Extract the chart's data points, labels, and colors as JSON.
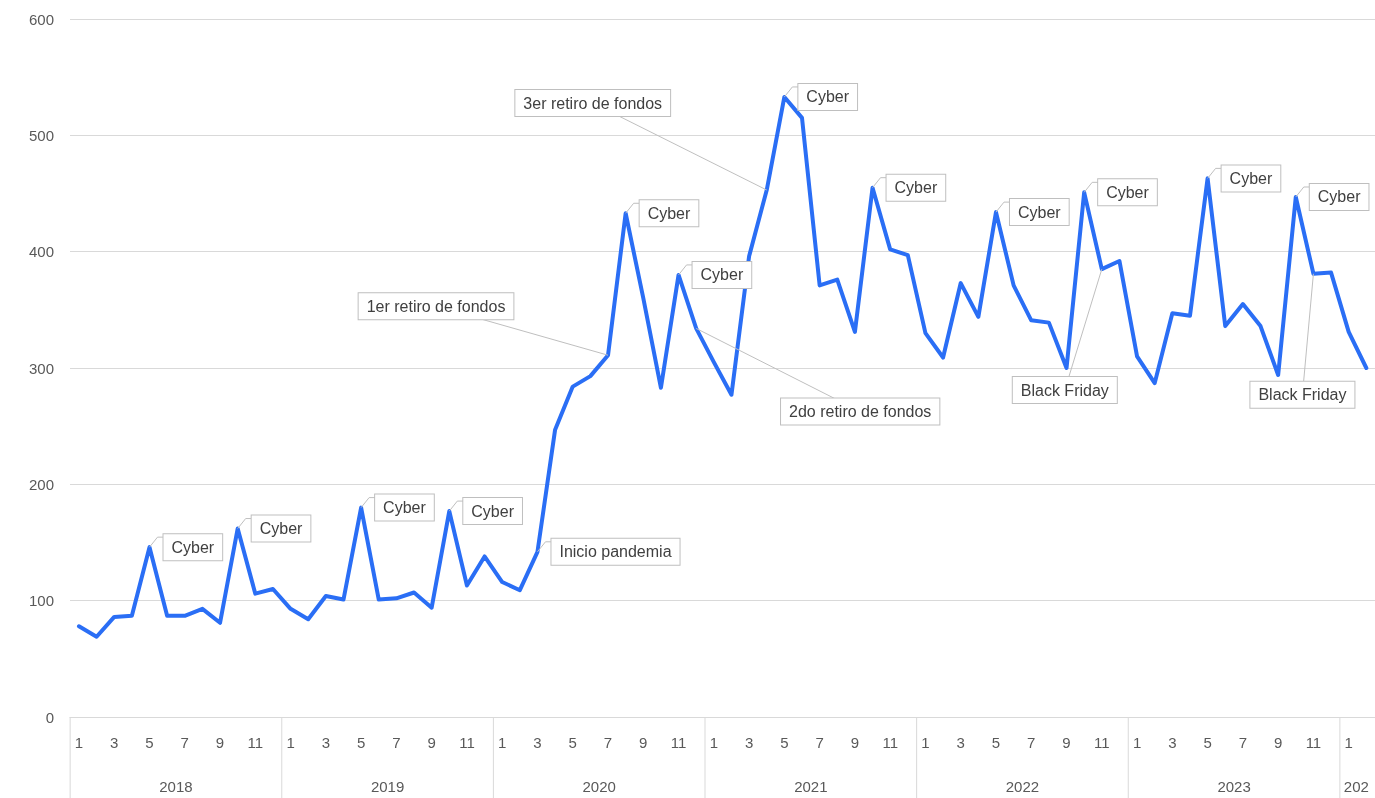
{
  "chart_data": {
    "type": "line",
    "x": [
      "2018-01",
      "2018-02",
      "2018-03",
      "2018-04",
      "2018-05",
      "2018-06",
      "2018-07",
      "2018-08",
      "2018-09",
      "2018-10",
      "2018-11",
      "2018-12",
      "2019-01",
      "2019-02",
      "2019-03",
      "2019-04",
      "2019-05",
      "2019-06",
      "2019-07",
      "2019-08",
      "2019-09",
      "2019-10",
      "2019-11",
      "2019-12",
      "2020-01",
      "2020-02",
      "2020-03",
      "2020-04",
      "2020-05",
      "2020-06",
      "2020-07",
      "2020-08",
      "2020-09",
      "2020-10",
      "2020-11",
      "2020-12",
      "2021-01",
      "2021-02",
      "2021-03",
      "2021-04",
      "2021-05",
      "2021-06",
      "2021-07",
      "2021-08",
      "2021-09",
      "2021-10",
      "2021-11",
      "2021-12",
      "2022-01",
      "2022-02",
      "2022-03",
      "2022-04",
      "2022-05",
      "2022-06",
      "2022-07",
      "2022-08",
      "2022-09",
      "2022-10",
      "2022-11",
      "2022-12",
      "2023-01",
      "2023-02",
      "2023-03",
      "2023-04",
      "2023-05",
      "2023-06",
      "2023-07",
      "2023-08",
      "2023-09",
      "2023-10",
      "2023-11",
      "2023-12",
      "2024-01",
      "2024-02"
    ],
    "series": [
      {
        "color": "#2a6ef5",
        "values": [
          78,
          69,
          86,
          87,
          146,
          87,
          87,
          93,
          81,
          162,
          106,
          110,
          93,
          84,
          104,
          101,
          180,
          101,
          102,
          107,
          94,
          177,
          113,
          138,
          116,
          109,
          142,
          247,
          284,
          293,
          311,
          433,
          360,
          283,
          380,
          334,
          305,
          277,
          396,
          453,
          533,
          515,
          371,
          376,
          331,
          455,
          402,
          397,
          330,
          309,
          373,
          344,
          434,
          371,
          341,
          339,
          300,
          451,
          385,
          392,
          310,
          287,
          347,
          345,
          463,
          336,
          355,
          336,
          294,
          447,
          381,
          382,
          331,
          300
        ]
      }
    ],
    "xlim": [
      "2017-12-16",
      "2024-02-16"
    ],
    "xticks": [
      {
        "value": "2018-01",
        "label": "1"
      },
      {
        "value": "2018-03",
        "label": "3"
      },
      {
        "value": "2018-05",
        "label": "5"
      },
      {
        "value": "2018-07",
        "label": "7"
      },
      {
        "value": "2018-09",
        "label": "9"
      },
      {
        "value": "2018-11",
        "label": "11"
      },
      {
        "value": "2019-01",
        "label": "1"
      },
      {
        "value": "2019-03",
        "label": "3"
      },
      {
        "value": "2019-05",
        "label": "5"
      },
      {
        "value": "2019-07",
        "label": "7"
      },
      {
        "value": "2019-09",
        "label": "9"
      },
      {
        "value": "2019-11",
        "label": "11"
      },
      {
        "value": "2020-01",
        "label": "1"
      },
      {
        "value": "2020-03",
        "label": "3"
      },
      {
        "value": "2020-05",
        "label": "5"
      },
      {
        "value": "2020-07",
        "label": "7"
      },
      {
        "value": "2020-09",
        "label": "9"
      },
      {
        "value": "2020-11",
        "label": "11"
      },
      {
        "value": "2021-01",
        "label": "1"
      },
      {
        "value": "2021-03",
        "label": "3"
      },
      {
        "value": "2021-05",
        "label": "5"
      },
      {
        "value": "2021-07",
        "label": "7"
      },
      {
        "value": "2021-09",
        "label": "9"
      },
      {
        "value": "2021-11",
        "label": "11"
      },
      {
        "value": "2022-01",
        "label": "1"
      },
      {
        "value": "2022-03",
        "label": "3"
      },
      {
        "value": "2022-05",
        "label": "5"
      },
      {
        "value": "2022-07",
        "label": "7"
      },
      {
        "value": "2022-09",
        "label": "9"
      },
      {
        "value": "2022-11",
        "label": "11"
      },
      {
        "value": "2023-01",
        "label": "1"
      },
      {
        "value": "2023-03",
        "label": "3"
      },
      {
        "value": "2023-05",
        "label": "5"
      },
      {
        "value": "2023-07",
        "label": "7"
      },
      {
        "value": "2023-09",
        "label": "9"
      },
      {
        "value": "2023-11",
        "label": "11"
      },
      {
        "value": "2024-01",
        "label": "1"
      }
    ],
    "ylim": [
      0,
      600
    ],
    "yticks": [
      0,
      100,
      200,
      300,
      400,
      500,
      600
    ],
    "grid": "y",
    "marker": "none",
    "line_style": "solid",
    "annotations": [
      {
        "text": "Cyber",
        "x": "2018-05",
        "y": 146
      },
      {
        "text": "Cyber",
        "x": "2018-10",
        "y": 162
      },
      {
        "text": "Cyber",
        "x": "2019-05",
        "y": 180
      },
      {
        "text": "Cyber",
        "x": "2019-10",
        "y": 177
      },
      {
        "text": "Inicio pandemia",
        "x": "2020-03",
        "y": 142
      },
      {
        "text": "1er retiro de fondos",
        "x": "2020-07",
        "y": 311
      },
      {
        "text": "Cyber",
        "x": "2020-08",
        "y": 433
      },
      {
        "text": "Cyber",
        "x": "2020-11",
        "y": 380
      },
      {
        "text": "2do retiro de fondos",
        "x": "2020-12",
        "y": 334
      },
      {
        "text": "3er retiro de fondos",
        "x": "2021-04",
        "y": 453
      },
      {
        "text": "Cyber",
        "x": "2021-05",
        "y": 533
      },
      {
        "text": "Cyber",
        "x": "2021-10",
        "y": 455
      },
      {
        "text": "Cyber",
        "x": "2022-05",
        "y": 434
      },
      {
        "text": "Cyber",
        "x": "2022-10",
        "y": 451
      },
      {
        "text": "Black Friday",
        "x": "2022-11",
        "y": 385
      },
      {
        "text": "Cyber",
        "x": "2023-05",
        "y": 463
      },
      {
        "text": "Cyber",
        "x": "2023-10",
        "y": 447
      },
      {
        "text": "Black Friday",
        "x": "2023-11",
        "y": 381
      },
      "2018",
      "2019",
      "2020",
      "2021",
      "2022",
      "2023",
      "202"
    ]
  }
}
